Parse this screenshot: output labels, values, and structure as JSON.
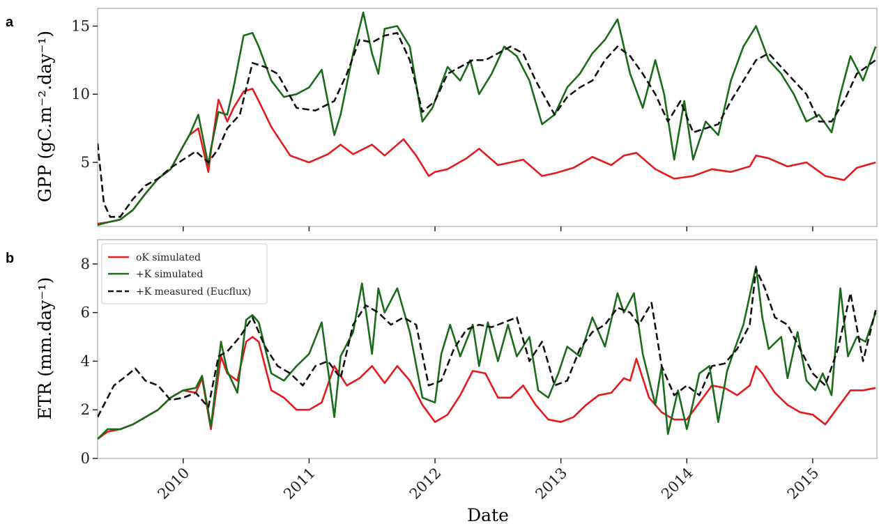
{
  "chart_data": [
    {
      "panel_letter": "a",
      "type": "line",
      "ylabel": "GPP (gC.m⁻².day⁻¹)",
      "ylim": [
        0.3,
        16.3
      ],
      "yticks": [
        5,
        10,
        15
      ],
      "xlim": [
        2009.82,
        2016.01
      ],
      "series": [
        {
          "name": "oK simulated",
          "color": "#e41a1c",
          "dash": "solid",
          "x": [
            2009.82,
            2009.9,
            2010.0,
            2010.1,
            2010.2,
            2010.3,
            2010.4,
            2010.5,
            2010.55,
            2010.62,
            2010.7,
            2010.72,
            2010.78,
            2010.85,
            2010.9,
            2010.98,
            2011.05,
            2011.1,
            2011.2,
            2011.35,
            2011.5,
            2011.65,
            2011.75,
            2011.85,
            2012.0,
            2012.1,
            2012.25,
            2012.35,
            2012.45,
            2012.5,
            2012.6,
            2012.75,
            2012.85,
            2013.0,
            2013.1,
            2013.2,
            2013.35,
            2013.45,
            2013.6,
            2013.75,
            2013.9,
            2014.0,
            2014.1,
            2014.25,
            2014.4,
            2014.55,
            2014.7,
            2014.85,
            2015.0,
            2015.05,
            2015.15,
            2015.3,
            2015.45,
            2015.6,
            2015.75,
            2015.85,
            2016.0
          ],
          "y": [
            0.5,
            0.6,
            0.8,
            1.5,
            2.7,
            3.8,
            4.5,
            6.2,
            7.0,
            7.5,
            4.3,
            5.8,
            9.6,
            8.0,
            9.0,
            10.2,
            10.4,
            9.5,
            7.6,
            5.5,
            5.0,
            5.6,
            6.3,
            5.6,
            6.3,
            5.5,
            6.7,
            5.5,
            4.0,
            4.3,
            4.5,
            5.3,
            6.0,
            4.8,
            5.0,
            5.2,
            4.0,
            4.2,
            4.6,
            5.4,
            4.8,
            5.5,
            5.7,
            4.5,
            3.8,
            4.0,
            4.5,
            4.3,
            4.7,
            5.5,
            5.3,
            4.7,
            5.0,
            4.0,
            3.7,
            4.6,
            5.0
          ]
        },
        {
          "name": "+K simulated",
          "color": "#1a6b1a",
          "dash": "solid",
          "x": [
            2009.82,
            2009.9,
            2010.0,
            2010.1,
            2010.2,
            2010.3,
            2010.4,
            2010.5,
            2010.55,
            2010.62,
            2010.7,
            2010.72,
            2010.78,
            2010.85,
            2010.9,
            2010.98,
            2011.05,
            2011.1,
            2011.2,
            2011.3,
            2011.4,
            2011.5,
            2011.6,
            2011.7,
            2011.75,
            2011.85,
            2011.93,
            2012.0,
            2012.05,
            2012.1,
            2012.2,
            2012.3,
            2012.4,
            2012.48,
            2012.6,
            2012.7,
            2012.78,
            2012.85,
            2012.95,
            2013.05,
            2013.15,
            2013.25,
            2013.35,
            2013.45,
            2013.55,
            2013.65,
            2013.75,
            2013.85,
            2013.95,
            2014.05,
            2014.15,
            2014.25,
            2014.32,
            2014.4,
            2014.48,
            2014.55,
            2014.65,
            2014.75,
            2014.85,
            2014.95,
            2015.05,
            2015.15,
            2015.25,
            2015.35,
            2015.45,
            2015.55,
            2015.65,
            2015.72,
            2015.8,
            2015.9,
            2016.0
          ],
          "y": [
            0.4,
            0.6,
            0.8,
            1.5,
            2.7,
            3.8,
            4.5,
            6.2,
            7.0,
            8.5,
            4.8,
            6.0,
            8.7,
            8.5,
            10.5,
            14.3,
            14.5,
            13.5,
            11.0,
            9.8,
            10.0,
            10.5,
            11.8,
            7.0,
            8.5,
            13.0,
            16.0,
            13.0,
            11.5,
            14.8,
            15.0,
            13.5,
            8.0,
            9.0,
            12.0,
            11.0,
            12.5,
            10.0,
            11.5,
            13.5,
            12.8,
            11.0,
            7.8,
            8.5,
            10.5,
            11.5,
            13.0,
            14.0,
            15.5,
            11.5,
            9.0,
            12.5,
            10.0,
            5.2,
            9.5,
            5.2,
            8.0,
            7.0,
            11.0,
            13.5,
            15.0,
            12.5,
            11.5,
            10.0,
            8.0,
            8.5,
            7.2,
            10.0,
            12.8,
            11.0,
            13.5
          ]
        },
        {
          "name": "+K measured (Eucflux)",
          "color": "#111111",
          "dash": "dashed",
          "x": [
            2009.82,
            2009.87,
            2009.92,
            2010.0,
            2010.1,
            2010.2,
            2010.3,
            2010.4,
            2010.5,
            2010.6,
            2010.7,
            2010.78,
            2010.85,
            2010.95,
            2011.05,
            2011.15,
            2011.25,
            2011.4,
            2011.55,
            2011.7,
            2011.8,
            2011.9,
            2012.0,
            2012.1,
            2012.2,
            2012.3,
            2012.4,
            2012.5,
            2012.6,
            2012.7,
            2012.8,
            2012.9,
            2013.0,
            2013.1,
            2013.2,
            2013.3,
            2013.45,
            2013.55,
            2013.65,
            2013.75,
            2013.85,
            2013.95,
            2014.05,
            2014.15,
            2014.25,
            2014.35,
            2014.45,
            2014.55,
            2014.65,
            2014.75,
            2014.85,
            2014.95,
            2015.05,
            2015.15,
            2015.25,
            2015.35,
            2015.45,
            2015.55,
            2015.65,
            2015.75,
            2015.85,
            2016.0
          ],
          "y": [
            6.4,
            2.0,
            1.0,
            1.0,
            2.3,
            3.3,
            3.8,
            4.6,
            5.2,
            5.8,
            5.0,
            6.0,
            7.5,
            8.5,
            12.3,
            12.0,
            11.5,
            9.0,
            8.8,
            9.5,
            11.5,
            14.0,
            13.8,
            14.3,
            14.5,
            12.5,
            8.7,
            9.5,
            11.5,
            12.0,
            12.5,
            12.5,
            13.0,
            13.5,
            13.0,
            11.0,
            8.5,
            9.8,
            10.5,
            11.0,
            12.5,
            13.5,
            12.8,
            11.5,
            10.0,
            8.0,
            9.5,
            7.2,
            7.5,
            7.8,
            9.5,
            11.0,
            12.5,
            13.0,
            12.0,
            11.0,
            10.0,
            8.0,
            8.0,
            9.5,
            11.5,
            12.5
          ]
        }
      ]
    },
    {
      "panel_letter": "b",
      "type": "line",
      "ylabel": "ETR (mm.day⁻¹)",
      "xlabel": "Date",
      "ylim": [
        0,
        9.0
      ],
      "yticks": [
        0,
        2,
        4,
        6,
        8
      ],
      "xlim": [
        2009.82,
        2016.01
      ],
      "xtick_labels": [
        "2010",
        "2011",
        "2012",
        "2013",
        "2014",
        "2015"
      ],
      "legend": {
        "position": "upper-left",
        "entries": [
          "oK simulated",
          "+K simulated",
          "+K measured (Eucflux)"
        ]
      },
      "series": [
        {
          "name": "oK simulated",
          "color": "#e41a1c",
          "dash": "solid",
          "x": [
            2009.82,
            2009.9,
            2010.0,
            2010.1,
            2010.2,
            2010.3,
            2010.4,
            2010.5,
            2010.6,
            2010.65,
            2010.72,
            2010.8,
            2010.85,
            2010.93,
            2011.0,
            2011.05,
            2011.1,
            2011.2,
            2011.3,
            2011.4,
            2011.5,
            2011.6,
            2011.7,
            2011.8,
            2011.9,
            2012.0,
            2012.1,
            2012.2,
            2012.3,
            2012.4,
            2012.5,
            2012.6,
            2012.7,
            2012.8,
            2012.9,
            2013.0,
            2013.1,
            2013.2,
            2013.3,
            2013.4,
            2013.5,
            2013.6,
            2013.7,
            2013.8,
            2013.9,
            2014.0,
            2014.05,
            2014.1,
            2014.2,
            2014.3,
            2014.4,
            2014.5,
            2014.6,
            2014.7,
            2014.8,
            2014.9,
            2015.0,
            2015.05,
            2015.1,
            2015.2,
            2015.3,
            2015.4,
            2015.5,
            2015.6,
            2015.7,
            2015.8,
            2015.9,
            2016.0
          ],
          "y": [
            0.8,
            1.1,
            1.2,
            1.4,
            1.7,
            2.0,
            2.5,
            2.8,
            2.7,
            3.3,
            1.2,
            4.2,
            3.5,
            3.2,
            4.8,
            5.0,
            4.8,
            2.8,
            2.5,
            2.0,
            2.0,
            2.3,
            3.8,
            3.0,
            3.3,
            3.8,
            3.1,
            3.8,
            3.2,
            2.2,
            1.5,
            1.8,
            2.6,
            3.6,
            3.5,
            2.5,
            2.5,
            3.0,
            2.2,
            1.6,
            1.5,
            1.7,
            2.2,
            2.6,
            2.7,
            3.3,
            3.2,
            4.1,
            2.5,
            1.9,
            1.6,
            1.6,
            2.3,
            3.0,
            2.9,
            2.6,
            3.0,
            3.8,
            3.5,
            2.7,
            2.2,
            1.9,
            1.8,
            1.4,
            2.1,
            2.8,
            2.8,
            2.9
          ]
        },
        {
          "name": "+K simulated",
          "color": "#1a6b1a",
          "dash": "solid",
          "x": [
            2009.82,
            2009.9,
            2010.0,
            2010.1,
            2010.2,
            2010.3,
            2010.4,
            2010.5,
            2010.6,
            2010.65,
            2010.72,
            2010.8,
            2010.85,
            2010.93,
            2011.0,
            2011.05,
            2011.1,
            2011.2,
            2011.3,
            2011.4,
            2011.5,
            2011.6,
            2011.7,
            2011.75,
            2011.85,
            2011.92,
            2012.0,
            2012.05,
            2012.1,
            2012.2,
            2012.3,
            2012.4,
            2012.5,
            2012.55,
            2012.62,
            2012.7,
            2012.8,
            2012.85,
            2012.92,
            2013.0,
            2013.08,
            2013.15,
            2013.25,
            2013.32,
            2013.4,
            2013.48,
            2013.55,
            2013.65,
            2013.75,
            2013.85,
            2013.95,
            2014.0,
            2014.08,
            2014.15,
            2014.25,
            2014.3,
            2014.35,
            2014.43,
            2014.5,
            2014.55,
            2014.6,
            2014.68,
            2014.75,
            2014.82,
            2014.88,
            2014.95,
            2015.05,
            2015.1,
            2015.15,
            2015.25,
            2015.3,
            2015.38,
            2015.45,
            2015.52,
            2015.58,
            2015.65,
            2015.72,
            2015.78,
            2015.85,
            2015.92,
            2016.0
          ],
          "y": [
            0.8,
            1.2,
            1.2,
            1.4,
            1.7,
            2.0,
            2.5,
            2.8,
            2.9,
            3.4,
            1.3,
            4.8,
            3.6,
            2.7,
            5.7,
            5.9,
            5.6,
            3.5,
            3.2,
            3.8,
            4.3,
            5.6,
            1.7,
            4.2,
            5.2,
            7.2,
            4.3,
            7.0,
            6.0,
            7.0,
            5.2,
            2.5,
            2.3,
            4.3,
            5.5,
            4.2,
            5.5,
            3.8,
            5.6,
            4.0,
            5.5,
            4.2,
            5.0,
            2.8,
            2.5,
            3.5,
            4.6,
            4.2,
            5.8,
            4.6,
            6.8,
            6.0,
            6.8,
            4.3,
            2.2,
            3.8,
            1.0,
            2.8,
            1.2,
            2.3,
            3.5,
            3.8,
            1.5,
            3.6,
            4.5,
            5.5,
            7.9,
            5.8,
            4.5,
            5.0,
            3.3,
            5.2,
            3.2,
            2.8,
            3.5,
            2.6,
            7.0,
            4.2,
            5.0,
            4.8,
            6.0
          ]
        },
        {
          "name": "+K measured (Eucflux)",
          "color": "#111111",
          "dash": "dashed",
          "x": [
            2009.82,
            2009.87,
            2009.95,
            2010.05,
            2010.12,
            2010.2,
            2010.3,
            2010.4,
            2010.5,
            2010.6,
            2010.7,
            2010.78,
            2010.85,
            2010.95,
            2011.05,
            2011.15,
            2011.25,
            2011.35,
            2011.45,
            2011.55,
            2011.65,
            2011.75,
            2011.85,
            2011.95,
            2012.05,
            2012.15,
            2012.25,
            2012.35,
            2012.45,
            2012.55,
            2012.65,
            2012.75,
            2012.85,
            2012.95,
            2013.05,
            2013.15,
            2013.25,
            2013.35,
            2013.45,
            2013.55,
            2013.65,
            2013.75,
            2013.85,
            2013.95,
            2014.05,
            2014.12,
            2014.22,
            2014.3,
            2014.4,
            2014.5,
            2014.6,
            2014.7,
            2014.8,
            2014.9,
            2015.0,
            2015.05,
            2015.12,
            2015.2,
            2015.3,
            2015.4,
            2015.5,
            2015.6,
            2015.7,
            2015.8,
            2015.9,
            2016.0
          ],
          "y": [
            1.7,
            2.2,
            3.0,
            3.4,
            3.7,
            3.2,
            3.0,
            2.4,
            2.5,
            2.7,
            2.1,
            4.2,
            4.4,
            5.0,
            5.8,
            4.6,
            3.8,
            3.5,
            3.0,
            3.8,
            4.0,
            3.3,
            5.5,
            6.3,
            6.0,
            5.5,
            5.8,
            5.5,
            3.0,
            3.2,
            4.5,
            5.3,
            5.5,
            5.4,
            5.6,
            5.8,
            4.0,
            4.8,
            3.0,
            3.2,
            4.5,
            5.2,
            5.5,
            6.2,
            6.0,
            5.5,
            6.4,
            3.8,
            2.6,
            3.0,
            2.6,
            3.8,
            3.9,
            4.5,
            5.5,
            7.8,
            7.0,
            5.8,
            5.5,
            4.5,
            3.5,
            3.0,
            4.5,
            6.8,
            4.0,
            6.1
          ]
        }
      ]
    }
  ]
}
